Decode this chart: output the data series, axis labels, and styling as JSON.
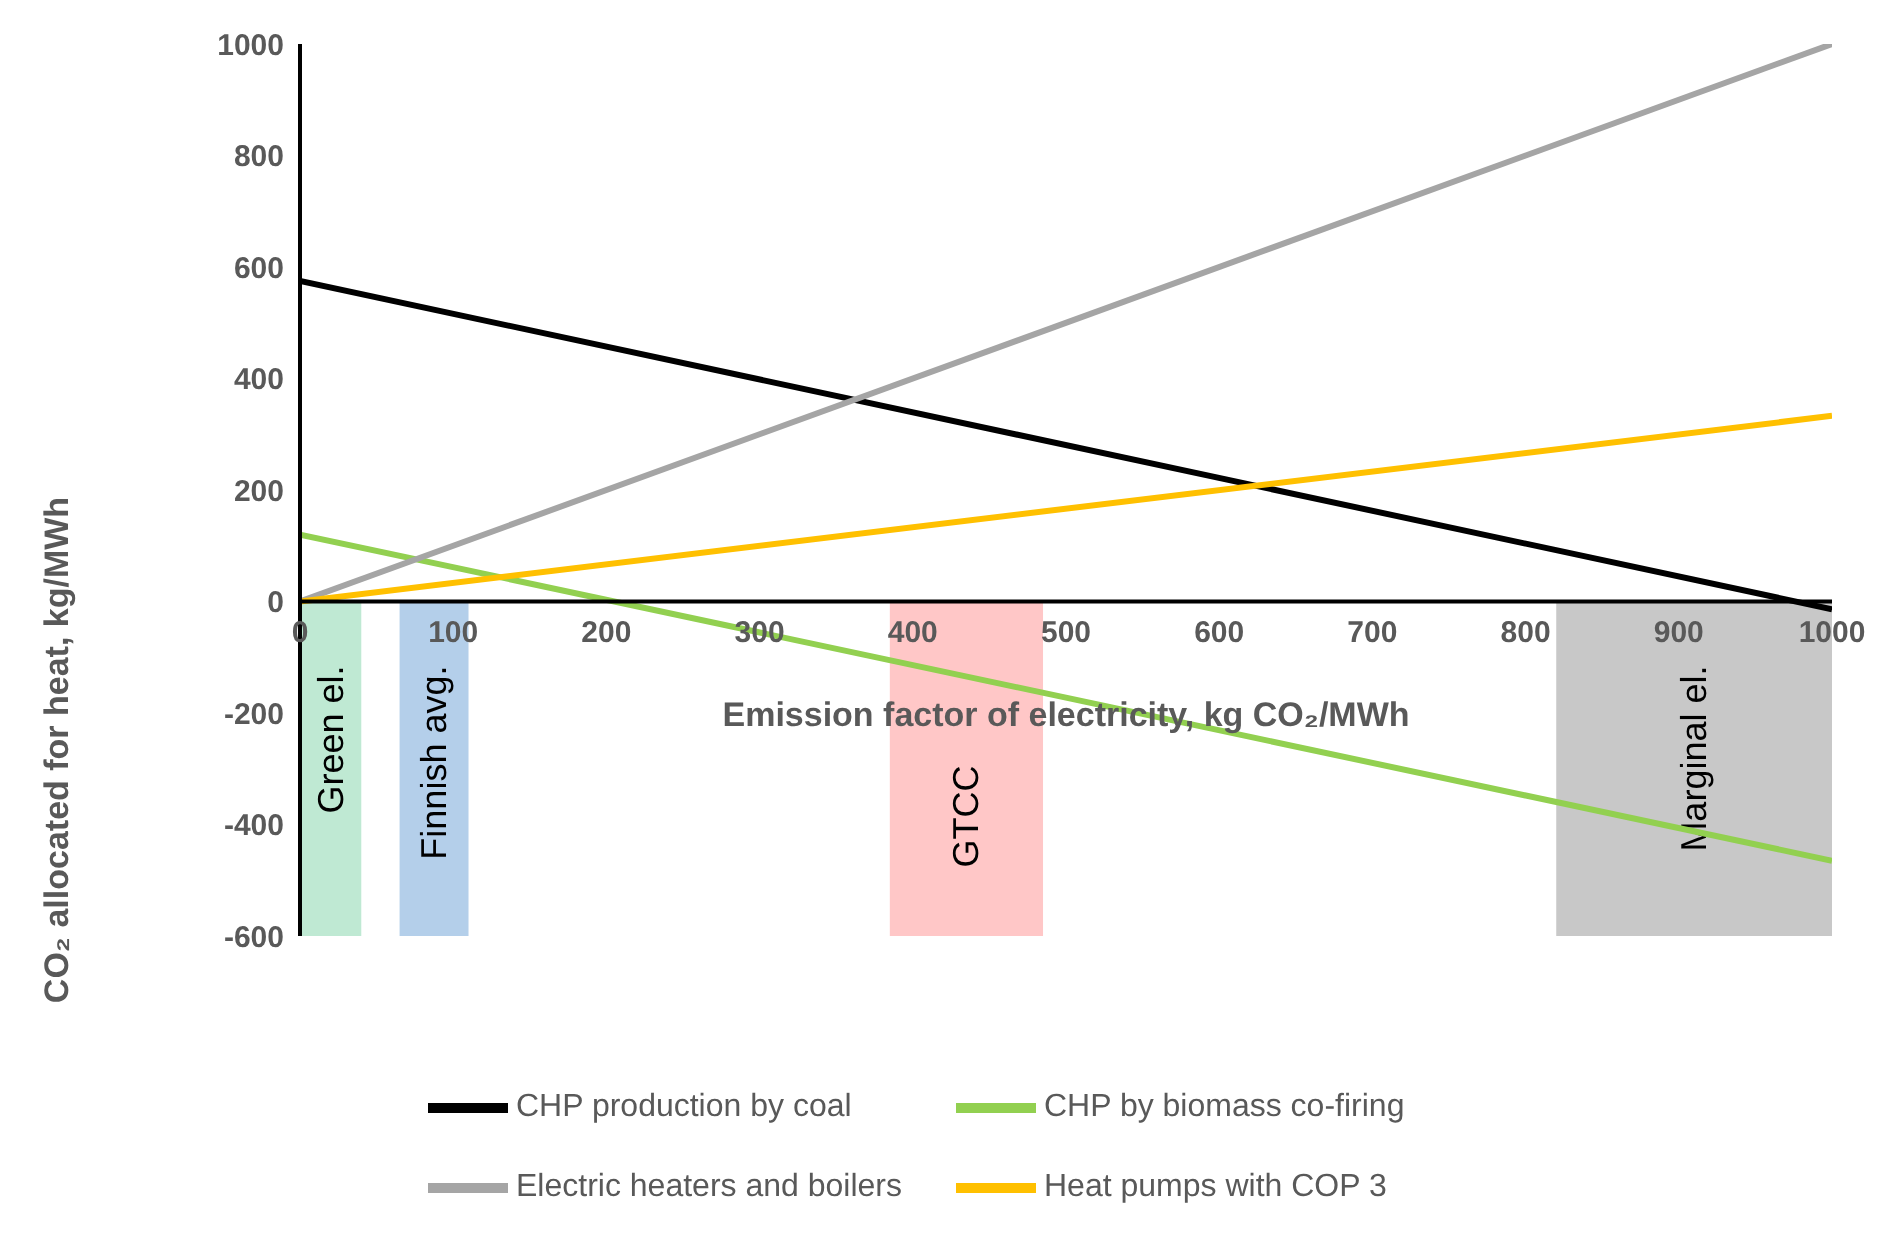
{
  "chart_data": {
    "type": "line",
    "xlabel": "Emission factor of electricity, kg CO₂/MWh",
    "ylabel": "CO₂ allocated for heat, kg/MWh",
    "x": [
      0,
      1000
    ],
    "xlim": [
      0,
      1000
    ],
    "xticks": [
      0,
      100,
      200,
      300,
      400,
      500,
      600,
      700,
      800,
      900,
      1000
    ],
    "ylim": [
      -600,
      1000
    ],
    "yticks": [
      -600,
      -400,
      -200,
      0,
      200,
      400,
      600,
      800,
      1000
    ],
    "legend": "bottom",
    "marker": "none",
    "line_style": "solid",
    "series": [
      {
        "name": "CHP production by coal",
        "color": "#000000",
        "values": [
          575,
          -14
        ]
      },
      {
        "name": "CHP by biomass co-firing",
        "color": "#92d050",
        "values": [
          120,
          -465
        ]
      },
      {
        "name": "Electric heaters and boilers",
        "color": "#a5a5a5",
        "values": [
          0,
          1000
        ]
      },
      {
        "name": "Heat pumps with COP 3",
        "color": "#ffc000",
        "values": [
          0,
          333
        ]
      }
    ],
    "bands": [
      {
        "axis": "x",
        "from": 0,
        "to": 40,
        "label": "Green el.",
        "color": "#bfe9d3"
      },
      {
        "axis": "x",
        "from": 65,
        "to": 110,
        "label": "Finnish avg.",
        "color": "#b4cfea"
      },
      {
        "axis": "x",
        "from": 385,
        "to": 485,
        "label": "GTCC",
        "color": "#ffc7c7"
      },
      {
        "axis": "x",
        "from": 820,
        "to": 1000,
        "label": "Marginal el.",
        "color": "#c8c8c8"
      }
    ]
  }
}
